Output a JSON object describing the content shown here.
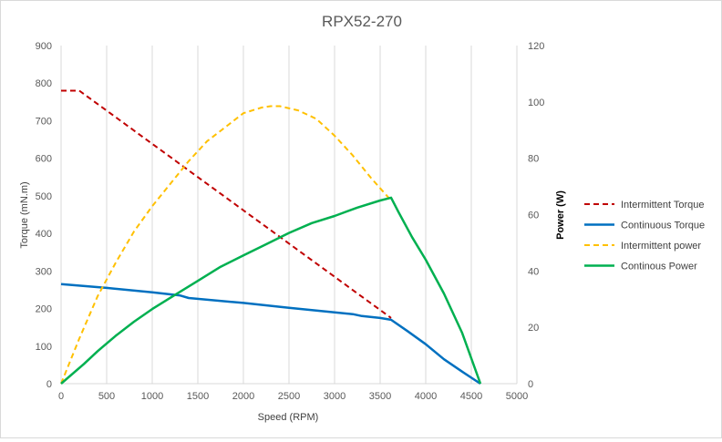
{
  "chart_data": {
    "type": "line",
    "title": "RPX52-270",
    "xlabel": "Speed  (RPM)",
    "ylabel": "Torque  (mN.m)",
    "y2label": "Power (W)",
    "xlim": [
      0,
      5000
    ],
    "ylim": [
      0,
      900
    ],
    "y2lim": [
      0,
      120
    ],
    "x_ticks": [
      "0",
      "500",
      "1000",
      "1500",
      "2000",
      "2500",
      "3000",
      "3500",
      "4000",
      "4500",
      "5000"
    ],
    "y_ticks": [
      "0",
      "100",
      "200",
      "300",
      "400",
      "500",
      "600",
      "700",
      "800",
      "900"
    ],
    "y2_ticks": [
      "0",
      "20",
      "40",
      "60",
      "80",
      "100",
      "120"
    ],
    "grid": "vertical",
    "legend_position": "right",
    "series": [
      {
        "name": "Intermittent Torque",
        "axis": "left",
        "color": "#c00000",
        "dash": "dashed",
        "points": [
          [
            0,
            780
          ],
          [
            200,
            780
          ],
          [
            3620,
            175
          ]
        ]
      },
      {
        "name": "Continuous Torque",
        "axis": "left",
        "color": "#0070c0",
        "dash": "solid",
        "points": [
          [
            0,
            265
          ],
          [
            500,
            255
          ],
          [
            1000,
            243
          ],
          [
            1300,
            235
          ],
          [
            1400,
            228
          ],
          [
            2000,
            215
          ],
          [
            2500,
            202
          ],
          [
            3000,
            190
          ],
          [
            3200,
            185
          ],
          [
            3300,
            180
          ],
          [
            3500,
            175
          ],
          [
            3620,
            170
          ],
          [
            3800,
            140
          ],
          [
            4000,
            105
          ],
          [
            4200,
            65
          ],
          [
            4400,
            32
          ],
          [
            4600,
            0
          ]
        ]
      },
      {
        "name": "Intermittent power",
        "axis": "right",
        "color": "#ffc000",
        "dash": "dashed",
        "points": [
          [
            0,
            0
          ],
          [
            200,
            16
          ],
          [
            400,
            31
          ],
          [
            600,
            43
          ],
          [
            800,
            54
          ],
          [
            1000,
            63
          ],
          [
            1200,
            71
          ],
          [
            1400,
            79
          ],
          [
            1600,
            86
          ],
          [
            1800,
            91
          ],
          [
            2000,
            96
          ],
          [
            2200,
            98
          ],
          [
            2300,
            98.5
          ],
          [
            2400,
            98.5
          ],
          [
            2600,
            97
          ],
          [
            2800,
            94
          ],
          [
            3000,
            88
          ],
          [
            3200,
            81
          ],
          [
            3400,
            73
          ],
          [
            3620,
            65
          ]
        ]
      },
      {
        "name": "Continous Power",
        "axis": "right",
        "color": "#00b050",
        "dash": "solid",
        "points": [
          [
            0,
            0
          ],
          [
            250,
            7
          ],
          [
            400,
            11.5
          ],
          [
            600,
            17
          ],
          [
            800,
            22
          ],
          [
            1000,
            26.5
          ],
          [
            1250,
            31.5
          ],
          [
            1500,
            36.5
          ],
          [
            1750,
            41.5
          ],
          [
            2000,
            45.5
          ],
          [
            2250,
            49.5
          ],
          [
            2500,
            53.5
          ],
          [
            2750,
            57
          ],
          [
            3000,
            59.5
          ],
          [
            3250,
            62.5
          ],
          [
            3500,
            65
          ],
          [
            3620,
            66
          ],
          [
            3700,
            61
          ],
          [
            3850,
            52
          ],
          [
            4000,
            44
          ],
          [
            4200,
            32
          ],
          [
            4400,
            18
          ],
          [
            4600,
            0
          ]
        ]
      }
    ]
  }
}
